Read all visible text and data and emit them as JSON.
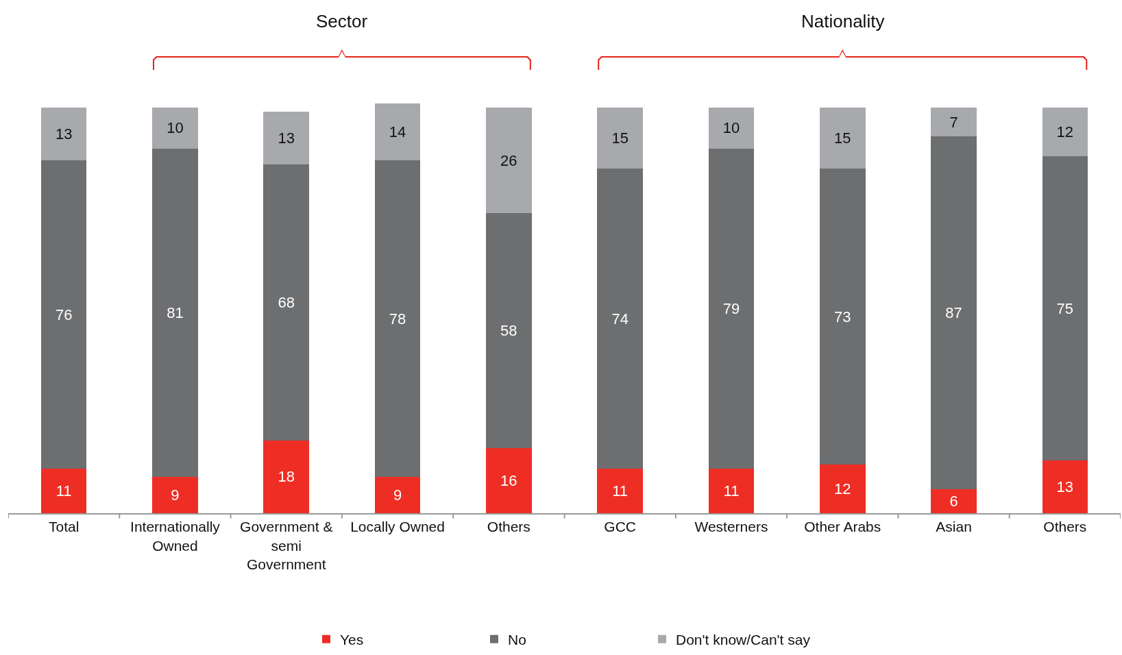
{
  "chart_data": {
    "type": "bar",
    "stacked": true,
    "data_labels": true,
    "legend": "bottom",
    "tick_labels": "x",
    "categories": [
      "Total",
      "Internationally Owned",
      "Government & semi Government",
      "Locally Owned",
      "Others",
      "GCC",
      "Westerners",
      "Other Arabs",
      "Asian",
      "Others"
    ],
    "series": [
      {
        "name": "Yes",
        "color": "#ee2e24",
        "values": [
          11,
          9,
          18,
          9,
          16,
          11,
          11,
          12,
          6,
          13
        ]
      },
      {
        "name": "No",
        "color": "#6d6e70",
        "values": [
          76,
          81,
          68,
          78,
          58,
          74,
          79,
          73,
          87,
          75
        ]
      },
      {
        "name": "Don't know/Can't say",
        "color": "#a7a9ac",
        "values": [
          13,
          10,
          13,
          14,
          26,
          15,
          10,
          15,
          7,
          12
        ]
      }
    ],
    "annotations": [
      "Sector",
      "Nationality"
    ]
  }
}
